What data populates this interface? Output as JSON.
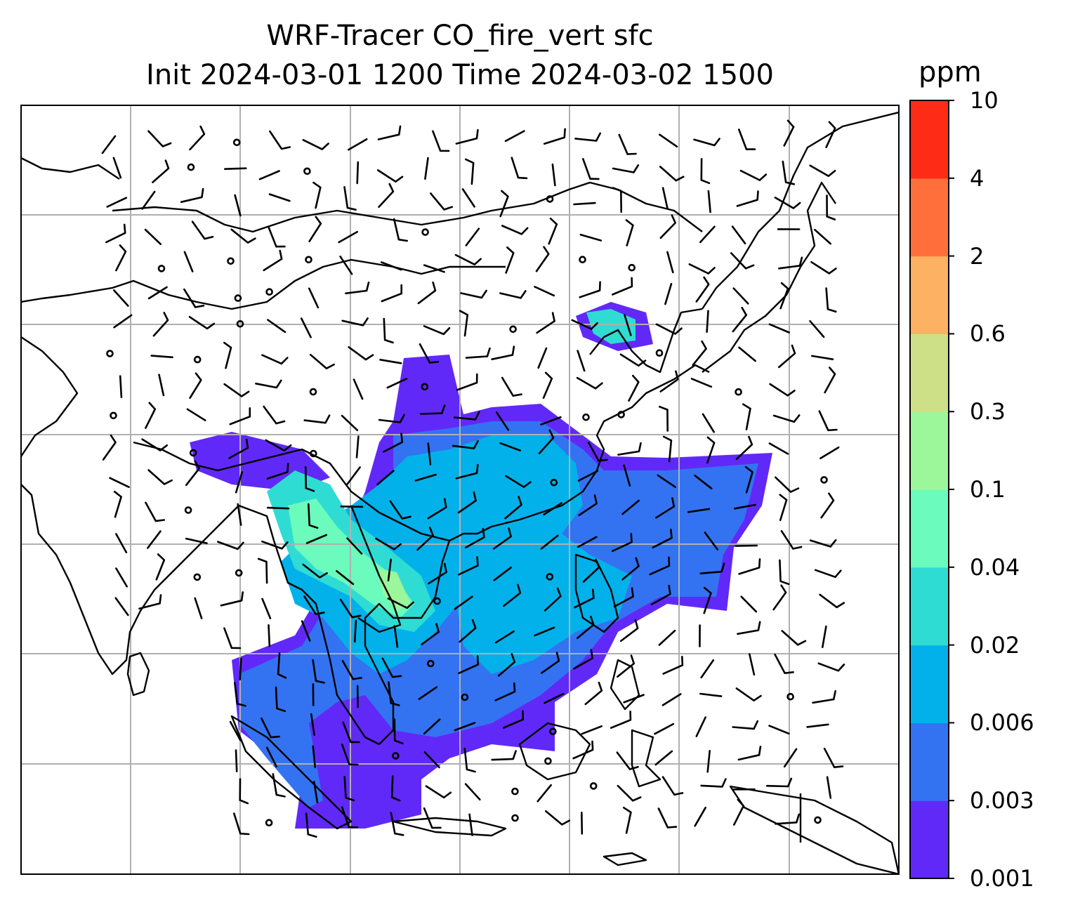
{
  "title": {
    "line1": "WRF-Tracer CO_fire_vert sfc",
    "line2": "Init 2024-03-01 1200 Time 2024-03-02 1500"
  },
  "colorbar": {
    "unit": "ppm",
    "levels": [
      "0.001",
      "0.003",
      "0.006",
      "0.02",
      "0.04",
      "0.1",
      "0.3",
      "0.6",
      "2",
      "4",
      "10"
    ],
    "colors": [
      "#6129f7",
      "#3373f2",
      "#03b1ea",
      "#2fdcd4",
      "#6bfbbd",
      "#9bf79a",
      "#cee087",
      "#fdb162",
      "#fe6f3b",
      "#fe2b17"
    ]
  },
  "map": {
    "land_outline_color": "#000000",
    "grid_color": "#b0b0b0",
    "wind_barb_color": "#000000"
  }
}
